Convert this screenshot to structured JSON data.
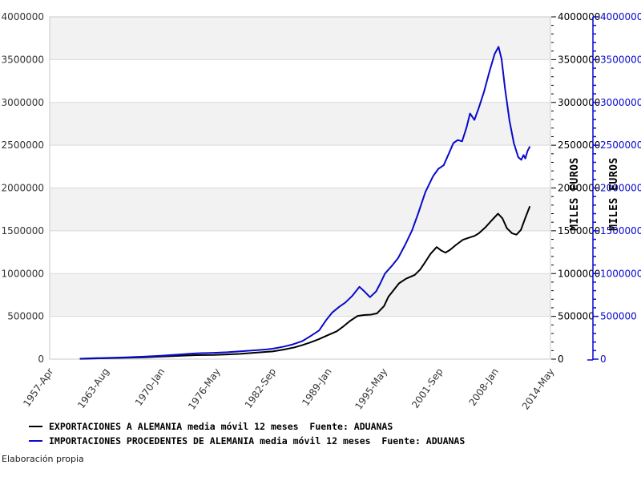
{
  "footer": "Elaboración propia",
  "chart_data": {
    "type": "line",
    "title": "",
    "grid": "horizontal gridlines with alternating gray/white bands",
    "legend_position": "bottom-left",
    "ylim": [
      0,
      4000000
    ],
    "y_tick_step": 500000,
    "y_minor_tick_step": 100000,
    "x_domain_years": [
      1957.29,
      2014.37
    ],
    "x_tick_labels": [
      "1957-Apr",
      "1963-Aug",
      "1970-Jan",
      "1976-May",
      "1982-Sep",
      "1989-Jan",
      "1995-May",
      "2001-Sep",
      "2008-Jan",
      "2014-May"
    ],
    "y_left_tick_labels": [
      "0",
      "500000",
      "1000000",
      "1500000",
      "2000000",
      "2500000",
      "3000000",
      "3500000",
      "4000000"
    ],
    "y_right_black_tick_labels": [
      "0",
      "500000",
      "1000000",
      "1500000",
      "2000000",
      "2500000",
      "3000000",
      "3500000",
      "4000000"
    ],
    "y_right_blue_tick_labels": [
      "0",
      "500000",
      "1000000",
      "1500000",
      "2000000",
      "2500000",
      "3000000",
      "3500000",
      "4000000"
    ],
    "y_axis_title_black": "MILES EUROS",
    "y_axis_title_blue": "MILES EUROS",
    "colors": {
      "export_line": "#000000",
      "import_line": "#0909cd",
      "band": "#f2f2f2",
      "gridline": "#d9d9d9",
      "border": "#c8c8c8",
      "tick_text": "#333333",
      "blue_axis": "#0909cd"
    },
    "series": [
      {
        "name": "EXPORTACIONES A ALEMANIA",
        "legend_label": "EXPORTACIONES A ALEMANIA media móvil 12 meses  Fuente: ADUANAS",
        "color": "#000000",
        "unit": "MILES EUROS",
        "points": [
          [
            1960.8,
            4000
          ],
          [
            1962.5,
            8000
          ],
          [
            1964,
            11000
          ],
          [
            1966,
            16000
          ],
          [
            1968,
            22000
          ],
          [
            1970,
            30000
          ],
          [
            1972,
            38000
          ],
          [
            1974,
            47000
          ],
          [
            1976,
            50000
          ],
          [
            1977.5,
            55000
          ],
          [
            1979,
            62000
          ],
          [
            1980.8,
            76000
          ],
          [
            1982.7,
            90000
          ],
          [
            1984,
            112000
          ],
          [
            1985.2,
            138000
          ],
          [
            1986.1,
            165000
          ],
          [
            1987,
            195000
          ],
          [
            1988,
            235000
          ],
          [
            1989,
            280000
          ],
          [
            1990,
            325000
          ],
          [
            1990.8,
            385000
          ],
          [
            1991.5,
            445000
          ],
          [
            1992.4,
            505000
          ],
          [
            1993.1,
            515000
          ],
          [
            1993.9,
            520000
          ],
          [
            1994.6,
            535000
          ],
          [
            1995.4,
            620000
          ],
          [
            1995.9,
            730000
          ],
          [
            1996.6,
            820000
          ],
          [
            1997.1,
            885000
          ],
          [
            1997.9,
            940000
          ],
          [
            1998.9,
            985000
          ],
          [
            1999.5,
            1045000
          ],
          [
            2000,
            1120000
          ],
          [
            2000.7,
            1230000
          ],
          [
            2001.4,
            1310000
          ],
          [
            2001.9,
            1270000
          ],
          [
            2002.4,
            1245000
          ],
          [
            2002.9,
            1275000
          ],
          [
            2003.6,
            1335000
          ],
          [
            2004.4,
            1395000
          ],
          [
            2005.1,
            1420000
          ],
          [
            2005.7,
            1440000
          ],
          [
            2006.2,
            1470000
          ],
          [
            2007,
            1545000
          ],
          [
            2007.7,
            1625000
          ],
          [
            2008.4,
            1700000
          ],
          [
            2008.9,
            1645000
          ],
          [
            2009.4,
            1530000
          ],
          [
            2010,
            1470000
          ],
          [
            2010.5,
            1455000
          ],
          [
            2011,
            1510000
          ],
          [
            2011.5,
            1650000
          ],
          [
            2012,
            1780000
          ]
        ]
      },
      {
        "name": "IMPORTACIONES PROCEDENTES DE ALEMANIA",
        "legend_label": "IMPORTACIONES PROCEDENTES DE ALEMANIA media móvil 12 meses  Fuente: ADUANAS",
        "color": "#0909cd",
        "unit": "MILES EUROS",
        "points": [
          [
            1960.8,
            6000
          ],
          [
            1962.5,
            11000
          ],
          [
            1964,
            15000
          ],
          [
            1966,
            21000
          ],
          [
            1968,
            29000
          ],
          [
            1970,
            39000
          ],
          [
            1972,
            53000
          ],
          [
            1974,
            68000
          ],
          [
            1976,
            74000
          ],
          [
            1977.5,
            81000
          ],
          [
            1979,
            91000
          ],
          [
            1980.8,
            104000
          ],
          [
            1982,
            113000
          ],
          [
            1982.7,
            122000
          ],
          [
            1984,
            147000
          ],
          [
            1985,
            172000
          ],
          [
            1986.1,
            212000
          ],
          [
            1987,
            268000
          ],
          [
            1988,
            335000
          ],
          [
            1988.8,
            455000
          ],
          [
            1989.5,
            545000
          ],
          [
            1990.3,
            612000
          ],
          [
            1991,
            662000
          ],
          [
            1991.8,
            742000
          ],
          [
            1992.6,
            845000
          ],
          [
            1993.2,
            788000
          ],
          [
            1993.8,
            724000
          ],
          [
            1994.5,
            792000
          ],
          [
            1995,
            890000
          ],
          [
            1995.5,
            1000000
          ],
          [
            1996.3,
            1090000
          ],
          [
            1997,
            1180000
          ],
          [
            1997.8,
            1335000
          ],
          [
            1998.6,
            1505000
          ],
          [
            1999.3,
            1705000
          ],
          [
            2000.1,
            1950000
          ],
          [
            2001,
            2140000
          ],
          [
            2001.6,
            2225000
          ],
          [
            2002.2,
            2265000
          ],
          [
            2002.8,
            2405000
          ],
          [
            2003.3,
            2525000
          ],
          [
            2003.8,
            2560000
          ],
          [
            2004.3,
            2545000
          ],
          [
            2004.8,
            2705000
          ],
          [
            2005.2,
            2870000
          ],
          [
            2005.7,
            2795000
          ],
          [
            2006.2,
            2935000
          ],
          [
            2006.8,
            3125000
          ],
          [
            2007.4,
            3355000
          ],
          [
            2008,
            3565000
          ],
          [
            2008.45,
            3650000
          ],
          [
            2008.8,
            3505000
          ],
          [
            2009.2,
            3155000
          ],
          [
            2009.7,
            2785000
          ],
          [
            2010.2,
            2525000
          ],
          [
            2010.7,
            2360000
          ],
          [
            2011.05,
            2330000
          ],
          [
            2011.3,
            2385000
          ],
          [
            2011.5,
            2345000
          ],
          [
            2011.75,
            2430000
          ],
          [
            2012,
            2480000
          ]
        ]
      }
    ]
  }
}
